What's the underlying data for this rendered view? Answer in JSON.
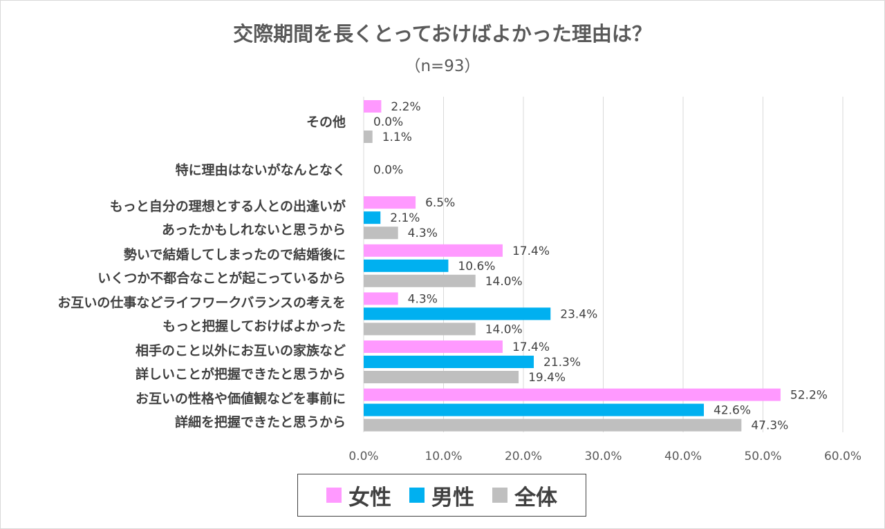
{
  "chart_data": {
    "type": "bar",
    "orientation": "horizontal",
    "title": "交際期間を長くとっておけばよかった理由は？",
    "subtitle": "（n=93）",
    "categories": [
      [
        "その他"
      ],
      [
        "特に理由はないがなんとなく"
      ],
      [
        "もっと自分の理想とする人との出逢いが",
        "あったかもしれないと思うから"
      ],
      [
        "勢いで結婚してしまったので結婚後に",
        "いくつか不都合なことが起こっているから"
      ],
      [
        "お互いの仕事などライフワークバランスの考えを",
        "もっと把握しておけばよかった"
      ],
      [
        "相手のこと以外にお互いの家族など",
        "詳しいことが把握できたと思うから"
      ],
      [
        "お互いの性格や価値観などを事前に",
        "詳細を把握できたと思うから"
      ]
    ],
    "series": [
      {
        "name": "女性",
        "color": "#ff99ff",
        "values": [
          2.2,
          null,
          6.5,
          17.4,
          4.3,
          17.4,
          52.2
        ],
        "labels": [
          "2.2%",
          "",
          "6.5%",
          "17.4%",
          "4.3%",
          "17.4%",
          "52.2%"
        ]
      },
      {
        "name": "男性",
        "color": "#00b0f0",
        "values": [
          0.0,
          0.0,
          2.1,
          10.6,
          23.4,
          21.3,
          42.6
        ],
        "labels": [
          "0.0%",
          "0.0%",
          "2.1%",
          "10.6%",
          "23.4%",
          "21.3%",
          "42.6%"
        ]
      },
      {
        "name": "全体",
        "color": "#bfbfbf",
        "values": [
          1.1,
          null,
          4.3,
          14.0,
          14.0,
          19.4,
          47.3
        ],
        "labels": [
          "1.1%",
          "",
          "4.3%",
          "14.0%",
          "14.0%",
          "19.4%",
          "47.3%"
        ]
      }
    ],
    "xlim": [
      0,
      60
    ],
    "xticks": [
      0,
      10,
      20,
      30,
      40,
      50,
      60
    ],
    "xtick_labels": [
      "0.0%",
      "10.0%",
      "20.0%",
      "30.0%",
      "40.0%",
      "50.0%",
      "60.0%"
    ],
    "grid": true,
    "legend_position": "bottom"
  }
}
